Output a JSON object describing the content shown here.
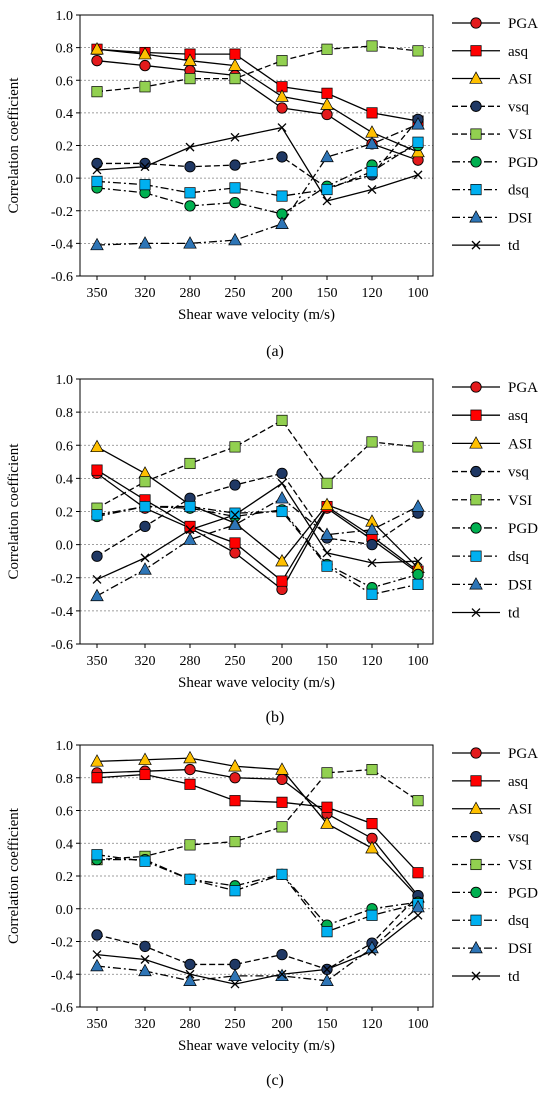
{
  "figure": {
    "panels": [
      {
        "caption": "(a)"
      },
      {
        "caption": "(b)"
      },
      {
        "caption": "(c)"
      }
    ]
  },
  "legend": {
    "items": [
      {
        "label": "PGA",
        "marker": "circle",
        "fill": "#e31a1c",
        "dash": "solid"
      },
      {
        "label": "asq",
        "marker": "square",
        "fill": "#ff0000",
        "dash": "solid"
      },
      {
        "label": "ASI",
        "marker": "triangle",
        "fill": "#ffc000",
        "dash": "solid"
      },
      {
        "label": "vsq",
        "marker": "circle",
        "fill": "#1f3864",
        "dash": "dash"
      },
      {
        "label": "VSI",
        "marker": "square",
        "fill": "#92d050",
        "dash": "dash"
      },
      {
        "label": "PGD",
        "marker": "circle",
        "fill": "#00b050",
        "dash": "dashdot"
      },
      {
        "label": "dsq",
        "marker": "square",
        "fill": "#00b0f0",
        "dash": "dashdot"
      },
      {
        "label": "DSI",
        "marker": "triangle",
        "fill": "#2e75b6",
        "dash": "dashdot"
      },
      {
        "label": "td",
        "marker": "x",
        "fill": "#000000",
        "dash": "solid"
      }
    ]
  },
  "chart_data": [
    {
      "type": "line",
      "xlabel": "Shear wave velocity (m/s)",
      "ylabel": "Correlation coefficient",
      "categories": [
        "350",
        "320",
        "280",
        "250",
        "200",
        "150",
        "120",
        "100"
      ],
      "ylim": [
        -0.6,
        1.0
      ],
      "yticks": [
        "1.0",
        "0.8",
        "0.6",
        "0.4",
        "0.2",
        "0.0",
        "-0.2",
        "-0.4",
        "-0.6"
      ],
      "grid": "horizontal dotted",
      "legend_position": "right",
      "series": [
        {
          "name": "PGA",
          "values": [
            0.72,
            0.69,
            0.66,
            0.63,
            0.43,
            0.39,
            0.21,
            0.11
          ]
        },
        {
          "name": "asq",
          "values": [
            0.79,
            0.77,
            0.76,
            0.76,
            0.56,
            0.52,
            0.4,
            0.35
          ]
        },
        {
          "name": "ASI",
          "values": [
            0.79,
            0.76,
            0.72,
            0.69,
            0.5,
            0.45,
            0.28,
            0.16
          ]
        },
        {
          "name": "vsq",
          "values": [
            0.09,
            0.09,
            0.07,
            0.08,
            0.13,
            -0.06,
            0.02,
            0.36
          ]
        },
        {
          "name": "VSI",
          "values": [
            0.53,
            0.56,
            0.61,
            0.61,
            0.72,
            0.79,
            0.81,
            0.78
          ]
        },
        {
          "name": "PGD",
          "values": [
            -0.06,
            -0.09,
            -0.17,
            -0.15,
            -0.22,
            -0.05,
            0.08,
            0.2
          ]
        },
        {
          "name": "dsq",
          "values": [
            -0.02,
            -0.04,
            -0.09,
            -0.06,
            -0.11,
            -0.07,
            0.04,
            0.22
          ]
        },
        {
          "name": "DSI",
          "values": [
            -0.41,
            -0.4,
            -0.4,
            -0.38,
            -0.28,
            0.13,
            0.21,
            0.33
          ]
        },
        {
          "name": "td",
          "values": [
            0.05,
            0.07,
            0.19,
            0.25,
            0.31,
            -0.14,
            -0.07,
            0.02
          ]
        }
      ]
    },
    {
      "type": "line",
      "xlabel": "Shear wave velocity (m/s)",
      "ylabel": "Correlation coefficient",
      "categories": [
        "350",
        "320",
        "280",
        "250",
        "200",
        "150",
        "120",
        "100"
      ],
      "ylim": [
        -0.6,
        1.0
      ],
      "yticks": [
        "1.0",
        "0.8",
        "0.6",
        "0.4",
        "0.2",
        "0.0",
        "-0.2",
        "-0.4",
        "-0.6"
      ],
      "grid": "horizontal dotted",
      "legend_position": "right",
      "series": [
        {
          "name": "PGA",
          "values": [
            0.43,
            0.22,
            0.1,
            -0.05,
            -0.27,
            0.22,
            0.03,
            -0.17
          ]
        },
        {
          "name": "asq",
          "values": [
            0.45,
            0.27,
            0.11,
            0.01,
            -0.22,
            0.23,
            0.05,
            -0.16
          ]
        },
        {
          "name": "ASI",
          "values": [
            0.59,
            0.43,
            0.24,
            0.13,
            -0.1,
            0.24,
            0.14,
            -0.14
          ]
        },
        {
          "name": "vsq",
          "values": [
            -0.07,
            0.11,
            0.28,
            0.36,
            0.43,
            0.04,
            0.0,
            0.19
          ]
        },
        {
          "name": "VSI",
          "values": [
            0.22,
            0.38,
            0.49,
            0.59,
            0.75,
            0.37,
            0.62,
            0.59
          ]
        },
        {
          "name": "PGD",
          "values": [
            0.17,
            0.23,
            0.22,
            0.17,
            0.21,
            -0.12,
            -0.26,
            -0.18
          ]
        },
        {
          "name": "dsq",
          "values": [
            0.18,
            0.23,
            0.23,
            0.19,
            0.2,
            -0.13,
            -0.3,
            -0.24
          ]
        },
        {
          "name": "DSI",
          "values": [
            -0.31,
            -0.15,
            0.03,
            0.12,
            0.28,
            0.06,
            0.09,
            0.23
          ]
        },
        {
          "name": "td",
          "values": [
            -0.21,
            -0.08,
            0.09,
            0.18,
            0.37,
            -0.05,
            -0.11,
            -0.1
          ]
        }
      ]
    },
    {
      "type": "line",
      "xlabel": "Shear wave velocity (m/s)",
      "ylabel": "Correlation coefficient",
      "categories": [
        "350",
        "320",
        "280",
        "250",
        "200",
        "150",
        "120",
        "100"
      ],
      "ylim": [
        -0.6,
        1.0
      ],
      "yticks": [
        "1.0",
        "0.8",
        "0.6",
        "0.4",
        "0.2",
        "0.0",
        "-0.2",
        "-0.4",
        "-0.6"
      ],
      "grid": "horizontal dotted",
      "legend_position": "right",
      "series": [
        {
          "name": "PGA",
          "values": [
            0.83,
            0.84,
            0.85,
            0.8,
            0.79,
            0.58,
            0.43,
            0.08
          ]
        },
        {
          "name": "asq",
          "values": [
            0.8,
            0.82,
            0.76,
            0.66,
            0.65,
            0.62,
            0.52,
            0.22
          ]
        },
        {
          "name": "ASI",
          "values": [
            0.9,
            0.91,
            0.92,
            0.87,
            0.85,
            0.52,
            0.37,
            0.07
          ]
        },
        {
          "name": "vsq",
          "values": [
            -0.16,
            -0.23,
            -0.34,
            -0.34,
            -0.28,
            -0.37,
            -0.21,
            0.08
          ]
        },
        {
          "name": "VSI",
          "values": [
            0.3,
            0.32,
            0.39,
            0.41,
            0.5,
            0.83,
            0.85,
            0.66
          ]
        },
        {
          "name": "PGD",
          "values": [
            0.3,
            0.3,
            0.18,
            0.14,
            0.21,
            -0.1,
            0.0,
            0.04
          ]
        },
        {
          "name": "dsq",
          "values": [
            0.33,
            0.29,
            0.18,
            0.11,
            0.21,
            -0.14,
            -0.04,
            0.03
          ]
        },
        {
          "name": "DSI",
          "values": [
            -0.35,
            -0.38,
            -0.44,
            -0.41,
            -0.41,
            -0.44,
            -0.24,
            0.01
          ]
        },
        {
          "name": "td",
          "values": [
            -0.28,
            -0.31,
            -0.4,
            -0.46,
            -0.4,
            -0.37,
            -0.26,
            -0.04
          ]
        }
      ]
    }
  ]
}
